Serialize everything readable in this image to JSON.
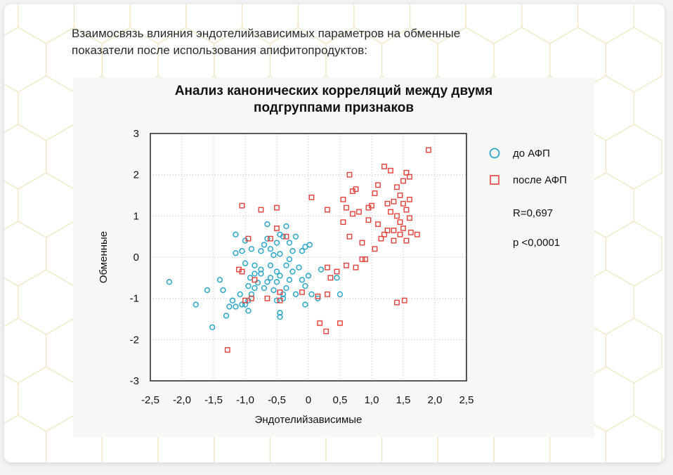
{
  "caption": {
    "line1": "Взаимосвязь влияния эндотелийзависимых параметров на обменные",
    "line2": "показатели после использования апифитопродуктов:"
  },
  "colors": {
    "before": "#2aa6c8",
    "after": "#e4413b",
    "axis": "#222222",
    "grid": "#b8b8b8",
    "hexLine": "#f1e6c4"
  },
  "chart_data": {
    "type": "scatter",
    "title_line1": "Анализ канонических корреляций между двумя",
    "title_line2": "подгруппами признаков",
    "xlabel": "Эндотелийзависимые",
    "ylabel": "Обменные",
    "xlim": [
      -2.5,
      2.5
    ],
    "ylim": [
      -3,
      3
    ],
    "x_ticks": [
      "-2,5",
      "-2,0",
      "-1,5",
      "-1,0",
      "-0,5",
      "0",
      "0,5",
      "1,0",
      "1,5",
      "2,0",
      "2,5"
    ],
    "y_ticks": [
      "3",
      "2",
      "1",
      "0",
      "-1",
      "-2",
      "-3"
    ],
    "x_tick_values": [
      -2.5,
      -2.0,
      -1.5,
      -1.0,
      -0.5,
      0,
      0.5,
      1.0,
      1.5,
      2.0,
      2.5
    ],
    "y_tick_values": [
      3,
      2,
      1,
      0,
      -1,
      -2,
      -3
    ],
    "grid": true,
    "legend_position": "right",
    "annotations": [
      "R=0,697",
      "p <0,0001"
    ],
    "series": [
      {
        "name": "до АФП",
        "marker": "circle",
        "points": [
          [
            -2.2,
            -0.6
          ],
          [
            -1.78,
            -1.15
          ],
          [
            -1.6,
            -0.8
          ],
          [
            -1.52,
            -1.7
          ],
          [
            -1.3,
            -1.42
          ],
          [
            -1.35,
            -0.8
          ],
          [
            -1.4,
            -0.55
          ],
          [
            -1.2,
            -1.05
          ],
          [
            -1.15,
            -1.2
          ],
          [
            -1.25,
            -1.2
          ],
          [
            -1.08,
            -0.9
          ],
          [
            -1.05,
            -1.15
          ],
          [
            -1.0,
            -1.15
          ],
          [
            -0.95,
            -1.05
          ],
          [
            -0.95,
            -1.3
          ],
          [
            -0.9,
            -0.9
          ],
          [
            -0.92,
            -0.5
          ],
          [
            -0.85,
            -0.75
          ],
          [
            -0.8,
            -0.62
          ],
          [
            -0.75,
            -0.4
          ],
          [
            -0.7,
            -0.75
          ],
          [
            -0.65,
            -0.6
          ],
          [
            -0.6,
            -0.5
          ],
          [
            -0.55,
            -0.8
          ],
          [
            -0.5,
            -0.6
          ],
          [
            -0.45,
            -0.45
          ],
          [
            -0.4,
            -0.9
          ],
          [
            -0.35,
            -0.75
          ],
          [
            -0.3,
            -0.55
          ],
          [
            -0.25,
            -0.35
          ],
          [
            -0.2,
            -0.9
          ],
          [
            -0.1,
            -0.55
          ],
          [
            -0.05,
            -0.7
          ],
          [
            0.0,
            -0.45
          ],
          [
            0.05,
            -0.9
          ],
          [
            0.15,
            -1.0
          ],
          [
            0.2,
            -0.3
          ],
          [
            0.45,
            -0.5
          ],
          [
            -0.05,
            -1.15
          ],
          [
            -0.45,
            -1.35
          ],
          [
            -0.45,
            -1.45
          ],
          [
            -0.5,
            -1.05
          ],
          [
            -0.4,
            -1.0
          ],
          [
            -1.0,
            -0.15
          ],
          [
            -0.9,
            0.2
          ],
          [
            -0.85,
            -0.2
          ],
          [
            -0.75,
            0.15
          ],
          [
            -0.7,
            0.3
          ],
          [
            -0.65,
            0.45
          ],
          [
            -0.6,
            0.2
          ],
          [
            -0.55,
            0.05
          ],
          [
            -0.5,
            0.35
          ],
          [
            -0.45,
            0.55
          ],
          [
            -0.4,
            0.5
          ],
          [
            -0.35,
            0.75
          ],
          [
            -0.3,
            0.35
          ],
          [
            -0.25,
            0.15
          ],
          [
            -0.2,
            0.5
          ],
          [
            -0.1,
            0.15
          ],
          [
            -0.05,
            0.25
          ],
          [
            -1.15,
            0.1
          ],
          [
            -1.05,
            0.15
          ],
          [
            -1.0,
            0.4
          ],
          [
            -1.15,
            0.55
          ],
          [
            -0.85,
            -0.4
          ],
          [
            -0.75,
            -0.3
          ],
          [
            -0.35,
            -0.2
          ],
          [
            -0.6,
            -0.2
          ],
          [
            -0.65,
            0.8
          ],
          [
            -0.15,
            -0.25
          ],
          [
            -0.5,
            -0.35
          ],
          [
            -0.95,
            -0.7
          ],
          [
            0.02,
            0.3
          ],
          [
            -0.45,
            0.08
          ],
          [
            -0.3,
            -0.05
          ],
          [
            0.5,
            -0.9
          ]
        ]
      },
      {
        "name": "после АФП",
        "marker": "square",
        "points": [
          [
            1.9,
            2.6
          ],
          [
            1.2,
            2.2
          ],
          [
            1.3,
            2.1
          ],
          [
            1.55,
            2.05
          ],
          [
            1.6,
            1.95
          ],
          [
            1.5,
            1.85
          ],
          [
            1.4,
            1.7
          ],
          [
            1.45,
            1.5
          ],
          [
            1.1,
            1.75
          ],
          [
            1.05,
            1.55
          ],
          [
            0.75,
            1.65
          ],
          [
            0.7,
            1.6
          ],
          [
            0.65,
            2.0
          ],
          [
            0.55,
            1.4
          ],
          [
            1.5,
            1.3
          ],
          [
            1.6,
            1.4
          ],
          [
            1.35,
            1.35
          ],
          [
            1.25,
            1.3
          ],
          [
            1.3,
            1.1
          ],
          [
            1.55,
            1.15
          ],
          [
            1.0,
            1.25
          ],
          [
            0.95,
            1.2
          ],
          [
            0.8,
            1.1
          ],
          [
            0.7,
            1.05
          ],
          [
            0.6,
            1.2
          ],
          [
            0.55,
            0.85
          ],
          [
            0.95,
            0.9
          ],
          [
            1.1,
            0.8
          ],
          [
            1.25,
            0.65
          ],
          [
            1.35,
            0.65
          ],
          [
            1.45,
            0.55
          ],
          [
            1.55,
            0.4
          ],
          [
            1.35,
            0.4
          ],
          [
            1.2,
            0.55
          ],
          [
            1.15,
            0.45
          ],
          [
            1.05,
            0.2
          ],
          [
            0.85,
            0.35
          ],
          [
            0.65,
            0.5
          ],
          [
            1.5,
            0.7
          ],
          [
            1.62,
            0.6
          ],
          [
            1.72,
            0.55
          ],
          [
            1.45,
            0.85
          ],
          [
            1.6,
            0.95
          ],
          [
            1.4,
            1.0
          ],
          [
            1.4,
            -1.1
          ],
          [
            1.52,
            -1.05
          ],
          [
            0.85,
            -0.05
          ],
          [
            0.75,
            -0.25
          ],
          [
            0.6,
            -0.2
          ],
          [
            0.45,
            -0.35
          ],
          [
            0.35,
            -0.5
          ],
          [
            0.3,
            -0.25
          ],
          [
            0.3,
            -0.9
          ],
          [
            0.15,
            -0.95
          ],
          [
            0.28,
            -1.8
          ],
          [
            0.18,
            -1.6
          ],
          [
            0.5,
            -1.6
          ],
          [
            0.05,
            1.45
          ],
          [
            0.3,
            1.15
          ],
          [
            -1.05,
            1.25
          ],
          [
            -0.75,
            1.15
          ],
          [
            -0.5,
            1.2
          ],
          [
            -0.5,
            0.7
          ],
          [
            -0.6,
            0.45
          ],
          [
            -0.35,
            0.5
          ],
          [
            -0.95,
            0.45
          ],
          [
            -1.1,
            -0.3
          ],
          [
            -1.05,
            -0.35
          ],
          [
            -0.9,
            -1.0
          ],
          [
            -0.85,
            -0.55
          ],
          [
            -0.65,
            -1.0
          ],
          [
            -0.45,
            -1.05
          ],
          [
            -0.45,
            -0.85
          ],
          [
            -0.1,
            -0.85
          ],
          [
            -1.28,
            -2.25
          ],
          [
            -1.0,
            -1.05
          ],
          [
            0.9,
            -0.05
          ]
        ]
      }
    ]
  }
}
